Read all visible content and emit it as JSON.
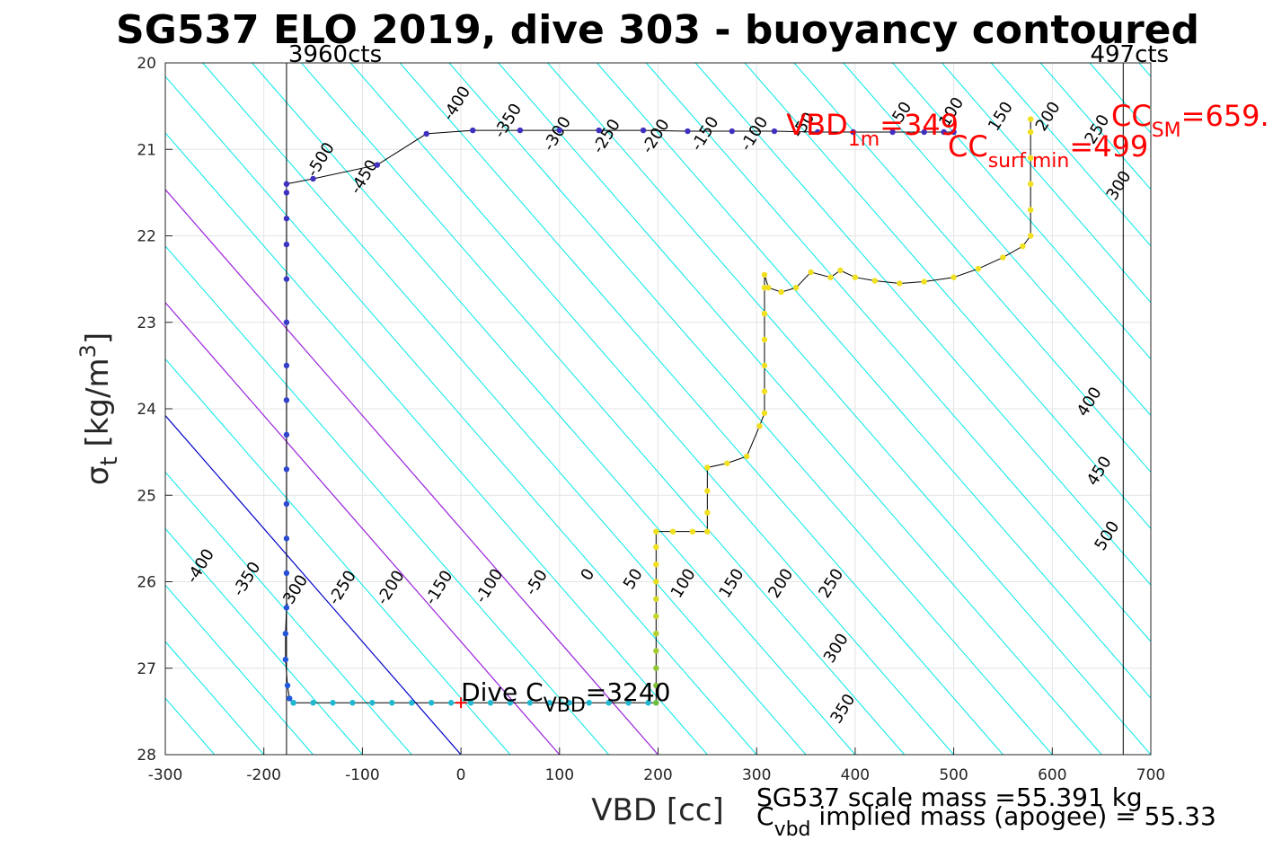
{
  "chart_data": {
    "type": "scatter",
    "title": "SG537 ELO 2019, dive 303 - buoyancy contoured",
    "xlabel": "VBD [cc]",
    "ylabel_main": "σ",
    "ylabel_sub": "t",
    "ylabel_units": " [kg/m",
    "ylabel_sup": "3",
    "ylabel_close": "]",
    "xlim": [
      -300,
      700
    ],
    "ylim": [
      20,
      28
    ],
    "y_reversed": true,
    "grid": true,
    "xticks": [
      -300,
      -200,
      -100,
      0,
      100,
      200,
      300,
      400,
      500,
      600,
      700
    ],
    "xtick_labels": [
      "-300",
      "-200",
      "-100",
      "0",
      "100",
      "200",
      "300",
      "400",
      "500",
      "600",
      "700"
    ],
    "yticks": [
      20,
      21,
      22,
      23,
      24,
      25,
      26,
      27,
      28
    ],
    "ytick_labels": [
      "20",
      "21",
      "22",
      "23",
      "24",
      "25",
      "26",
      "27",
      "28"
    ],
    "vertical_lines": [
      {
        "x": -177,
        "label": "3960cts"
      },
      {
        "x": 672,
        "label": "497cts"
      }
    ],
    "contours": {
      "slope_cc_per_sigma": 76.5,
      "cyan_levels": [
        -800,
        -750,
        -700,
        -650,
        -600,
        -550,
        -500,
        -450,
        -400,
        -350,
        -300,
        -250,
        -200,
        -150,
        -100,
        -50,
        50,
        100,
        150,
        200,
        250,
        300,
        350,
        400,
        450,
        500,
        550,
        600,
        650,
        700,
        750,
        800,
        850,
        900,
        950,
        1000,
        1050,
        1100,
        1150,
        1200,
        1250,
        1300,
        1350
      ],
      "zero_level": 0,
      "magenta_levels": [
        100,
        200
      ],
      "colors": {
        "cyan": "#00e8e8",
        "zero": "#0000cc",
        "magenta": "#aa22dd"
      },
      "labels_lower": [
        {
          "level": -400,
          "x": -260,
          "y": 25.85,
          "text": "-400"
        },
        {
          "level": -350,
          "x": -213,
          "y": 26.0,
          "text": "-350"
        },
        {
          "level": -300,
          "x": -165,
          "y": 26.15,
          "text": "-300"
        },
        {
          "level": -250,
          "x": -116,
          "y": 26.1,
          "text": "-250"
        },
        {
          "level": -200,
          "x": -67,
          "y": 26.1,
          "text": "-200"
        },
        {
          "level": -150,
          "x": -18,
          "y": 26.1,
          "text": "-150"
        },
        {
          "level": -100,
          "x": 33,
          "y": 26.08,
          "text": "-100"
        },
        {
          "level": -50,
          "x": 81,
          "y": 26.04,
          "text": "-50"
        },
        {
          "level": 0,
          "x": 133,
          "y": 25.95,
          "text": "0"
        },
        {
          "level": 50,
          "x": 179,
          "y": 26.0,
          "text": "50"
        },
        {
          "level": 100,
          "x": 230,
          "y": 26.05,
          "text": "100"
        },
        {
          "level": 150,
          "x": 279,
          "y": 26.05,
          "text": "150"
        },
        {
          "level": 200,
          "x": 329,
          "y": 26.05,
          "text": "200"
        },
        {
          "level": 250,
          "x": 380,
          "y": 26.05,
          "text": "250"
        },
        {
          "level": 300,
          "x": 385,
          "y": 26.8,
          "text": "300"
        },
        {
          "level": 350,
          "x": 392,
          "y": 27.5,
          "text": "350"
        }
      ],
      "labels_upper": [
        {
          "level": -500,
          "x": -138,
          "y": 21.15,
          "text": "-500"
        },
        {
          "level": -450,
          "x": -94,
          "y": 21.35,
          "text": "-450"
        },
        {
          "level": -400,
          "x": 0,
          "y": 20.5,
          "text": "-400"
        },
        {
          "level": -350,
          "x": 52,
          "y": 20.7,
          "text": "-350"
        },
        {
          "level": -300,
          "x": 102,
          "y": 20.85,
          "text": "-300"
        },
        {
          "level": -250,
          "x": 152,
          "y": 20.88,
          "text": "-250"
        },
        {
          "level": -200,
          "x": 202,
          "y": 20.88,
          "text": "-200"
        },
        {
          "level": -150,
          "x": 252,
          "y": 20.85,
          "text": "-150"
        },
        {
          "level": -100,
          "x": 302,
          "y": 20.85,
          "text": "-100"
        },
        {
          "level": -50,
          "x": 352,
          "y": 20.75,
          "text": "-50"
        },
        {
          "level": 50,
          "x": 452,
          "y": 20.6,
          "text": "50"
        },
        {
          "level": 100,
          "x": 502,
          "y": 20.6,
          "text": "100"
        },
        {
          "level": 150,
          "x": 552,
          "y": 20.65,
          "text": "150"
        },
        {
          "level": 200,
          "x": 600,
          "y": 20.65,
          "text": "200"
        },
        {
          "level": 250,
          "x": 650,
          "y": 20.8,
          "text": "250"
        },
        {
          "level": 300,
          "x": 672,
          "y": 21.45,
          "text": "300"
        },
        {
          "level": 400,
          "x": 642,
          "y": 23.95,
          "text": "400"
        },
        {
          "level": 450,
          "x": 652,
          "y": 24.75,
          "text": "450"
        },
        {
          "level": 500,
          "x": 660,
          "y": 25.5,
          "text": "500"
        }
      ]
    },
    "series": [
      {
        "segment": "descent-surface",
        "color": "#4030c0",
        "points": [
          [
            -177,
            21.4
          ],
          [
            -150,
            21.34
          ],
          [
            -85,
            21.18
          ],
          [
            -35,
            20.82
          ],
          [
            12,
            20.78
          ],
          [
            60,
            20.78
          ],
          [
            100,
            20.78
          ],
          [
            140,
            20.78
          ],
          [
            185,
            20.78
          ],
          [
            230,
            20.79
          ],
          [
            275,
            20.79
          ],
          [
            318,
            20.79
          ],
          [
            362,
            20.8
          ],
          [
            398,
            20.8
          ],
          [
            438,
            20.8
          ],
          [
            470,
            20.8
          ],
          [
            490,
            20.8
          ],
          [
            500,
            20.8
          ]
        ]
      },
      {
        "segment": "descent-vertical",
        "color": "#4030c0",
        "points": [
          [
            -177,
            21.5
          ],
          [
            -177,
            21.8
          ],
          [
            -177,
            22.1
          ],
          [
            -177,
            22.5
          ],
          [
            -177,
            23.0
          ],
          [
            -177,
            23.5
          ],
          [
            -177,
            23.9
          ],
          [
            -177,
            24.3
          ],
          [
            -177,
            24.7
          ],
          [
            -177,
            25.1
          ],
          [
            -177,
            25.5
          ],
          [
            -177,
            25.9
          ],
          [
            -177,
            26.3
          ],
          [
            -178,
            26.6
          ],
          [
            -178,
            26.9
          ],
          [
            -176,
            27.2
          ],
          [
            -174,
            27.35
          ],
          [
            -170,
            27.4
          ]
        ]
      },
      {
        "segment": "apogee-pump",
        "color": "#20b8d0",
        "points": [
          [
            -170,
            27.4
          ],
          [
            -150,
            27.4
          ],
          [
            -130,
            27.4
          ],
          [
            -110,
            27.4
          ],
          [
            -90,
            27.4
          ],
          [
            -70,
            27.4
          ],
          [
            -50,
            27.4
          ],
          [
            -30,
            27.4
          ],
          [
            -10,
            27.4
          ],
          [
            10,
            27.4
          ],
          [
            30,
            27.4
          ],
          [
            50,
            27.4
          ],
          [
            70,
            27.4
          ],
          [
            90,
            27.4
          ],
          [
            110,
            27.4
          ],
          [
            130,
            27.4
          ],
          [
            150,
            27.4
          ],
          [
            170,
            27.4
          ],
          [
            190,
            27.4
          ],
          [
            198,
            27.4
          ]
        ]
      },
      {
        "segment": "climb",
        "color": "#f0e020",
        "points": [
          [
            198,
            27.4
          ],
          [
            198,
            27.2
          ],
          [
            198,
            27.0
          ],
          [
            198,
            26.8
          ],
          [
            198,
            26.6
          ],
          [
            198,
            26.4
          ],
          [
            198,
            26.2
          ],
          [
            198,
            26.0
          ],
          [
            198,
            25.8
          ],
          [
            198,
            25.6
          ],
          [
            198,
            25.42
          ],
          [
            215,
            25.42
          ],
          [
            235,
            25.42
          ],
          [
            250,
            25.42
          ],
          [
            250,
            25.2
          ],
          [
            250,
            24.95
          ],
          [
            250,
            24.68
          ],
          [
            270,
            24.63
          ],
          [
            290,
            24.55
          ],
          [
            303,
            24.2
          ],
          [
            308,
            24.05
          ],
          [
            308,
            23.8
          ],
          [
            308,
            23.5
          ],
          [
            308,
            23.2
          ],
          [
            308,
            22.9
          ],
          [
            308,
            22.6
          ],
          [
            308,
            22.45
          ],
          [
            312,
            22.6
          ],
          [
            325,
            22.65
          ],
          [
            340,
            22.6
          ],
          [
            355,
            22.42
          ],
          [
            375,
            22.48
          ],
          [
            385,
            22.4
          ],
          [
            400,
            22.48
          ],
          [
            420,
            22.52
          ],
          [
            445,
            22.55
          ],
          [
            470,
            22.53
          ],
          [
            500,
            22.48
          ],
          [
            525,
            22.38
          ],
          [
            550,
            22.25
          ],
          [
            570,
            22.12
          ],
          [
            578,
            22.0
          ],
          [
            578,
            21.7
          ],
          [
            578,
            21.4
          ],
          [
            578,
            21.1
          ],
          [
            578,
            20.8
          ],
          [
            578,
            20.65
          ]
        ]
      }
    ],
    "annotations": [
      {
        "x": 352,
        "y": 20.8,
        "main": "VBD",
        "sub": "1m",
        "value": "=349",
        "color": "#ff0000"
      },
      {
        "x": 495,
        "y": 21.0,
        "main": "CC",
        "sub": "surf min",
        "value": "=499",
        "color": "#ff0000"
      },
      {
        "x": 660,
        "y": 20.7,
        "main": "CC",
        "sub": "SM",
        "value": "=659.",
        "color": "#ff0000"
      },
      {
        "x": 0,
        "y": 27.4,
        "main": "Dive C",
        "sub": "VBD",
        "value": "=3240",
        "color": "#000000"
      }
    ],
    "markers": [
      {
        "x": 0,
        "y": 27.4,
        "symbol": "+",
        "color": "#ff0000"
      }
    ],
    "footer": {
      "line1": "SG537 scale mass =55.391 kg",
      "line2_main": "C",
      "line2_sub": "vbd",
      "line2_rest": " implied mass (apogee) = 55.33"
    }
  }
}
